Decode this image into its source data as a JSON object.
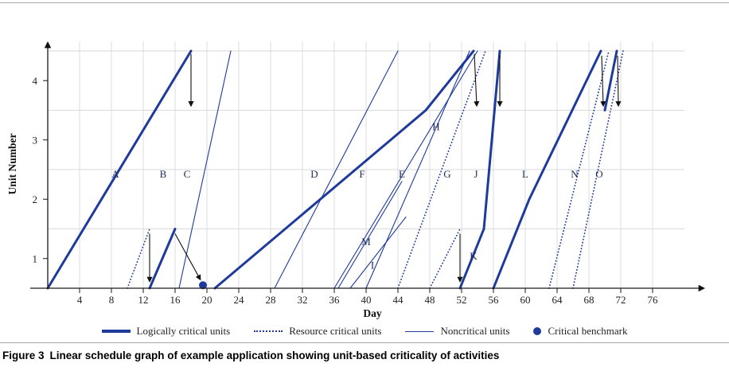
{
  "figure": {
    "caption_prefix": "Figure 3",
    "caption_text": "Linear schedule graph of example application showing unit-based criticality of activities"
  },
  "legend": [
    {
      "label": "Logically critical units",
      "style": "thick"
    },
    {
      "label": "Resource critical units",
      "style": "dotted"
    },
    {
      "label": "Noncritical units",
      "style": "thin"
    },
    {
      "label": "Critical benchmark",
      "style": "dot"
    }
  ],
  "colors": {
    "line": "#1e3a9a",
    "grid": "#d9d9d9",
    "axis": "#1a1a1a",
    "arrow": "#111111",
    "label": "#1d2c55",
    "tick": "#222222"
  },
  "chart_data": {
    "type": "line",
    "title": "",
    "xlabel": "Day",
    "ylabel": "Unit Number",
    "xlim": [
      0,
      80
    ],
    "ylim": [
      0.5,
      4.8
    ],
    "x_ticks": [
      4,
      8,
      12,
      16,
      20,
      24,
      28,
      32,
      36,
      40,
      44,
      48,
      52,
      56,
      60,
      64,
      68,
      72,
      76
    ],
    "y_ticks": [
      1,
      2,
      3,
      4
    ],
    "grid_units": [
      1.5,
      2.5,
      3.5,
      4.5
    ],
    "activities": [
      {
        "name": "A",
        "criticality": "logical",
        "points": [
          [
            0,
            0.5
          ],
          [
            18,
            4.5
          ]
        ],
        "label": [
          8.5,
          2.42
        ]
      },
      {
        "name": "B",
        "criticality": "logical",
        "points": [
          [
            12.8,
            0.5
          ],
          [
            16,
            1.5
          ]
        ],
        "label": [
          14.5,
          2.42
        ]
      },
      {
        "name": "C",
        "criticality": "noncritical",
        "points": [
          [
            16.5,
            0.5
          ],
          [
            23,
            4.5
          ]
        ],
        "label": [
          17.5,
          2.42
        ]
      },
      {
        "name": "",
        "criticality": "resource",
        "points": [
          [
            10,
            0.5
          ],
          [
            12.8,
            1.5
          ]
        ],
        "label": null
      },
      {
        "name": "D",
        "criticality": "noncritical",
        "points": [
          [
            28.5,
            0.5
          ],
          [
            44,
            4.5
          ]
        ],
        "label": [
          33.5,
          2.42
        ]
      },
      {
        "name": "F",
        "criticality": "logical",
        "points": [
          [
            21,
            0.5
          ],
          [
            47.5,
            3.5
          ],
          [
            53.5,
            4.5
          ]
        ],
        "label": [
          39.5,
          2.42
        ]
      },
      {
        "name": "E",
        "criticality": "noncritical",
        "points": [
          [
            36,
            0.5
          ],
          [
            54,
            4.5
          ]
        ],
        "label": [
          44.5,
          2.42
        ]
      },
      {
        "name": "H",
        "criticality": "noncritical",
        "points": [
          [
            40,
            0.5
          ],
          [
            53,
            4.5
          ]
        ],
        "label": [
          48.8,
          3.22
        ]
      },
      {
        "name": "M",
        "criticality": "noncritical",
        "points": [
          [
            36.5,
            0.5
          ],
          [
            44.5,
            2.3
          ]
        ],
        "label": [
          40,
          1.28
        ]
      },
      {
        "name": "I",
        "criticality": "noncritical",
        "points": [
          [
            38,
            0.5
          ],
          [
            45,
            1.7
          ]
        ],
        "label": [
          40.8,
          0.88
        ]
      },
      {
        "name": "G",
        "criticality": "resource",
        "points": [
          [
            44,
            0.5
          ],
          [
            55,
            4.5
          ]
        ],
        "label": [
          50.2,
          2.42
        ]
      },
      {
        "name": "",
        "criticality": "resource",
        "points": [
          [
            48,
            0.5
          ],
          [
            51.8,
            1.5
          ]
        ],
        "label": null
      },
      {
        "name": "K",
        "criticality": "logical",
        "points": [
          [
            51.8,
            0.5
          ],
          [
            54.8,
            1.5
          ]
        ],
        "label": [
          53.5,
          1.04
        ]
      },
      {
        "name": "J",
        "criticality": "logical",
        "points": [
          [
            54.8,
            1.5
          ],
          [
            56.8,
            4.5
          ]
        ],
        "label": [
          53.8,
          2.42
        ]
      },
      {
        "name": "L",
        "criticality": "logical",
        "points": [
          [
            56,
            0.5
          ],
          [
            60.5,
            2.0
          ],
          [
            69.5,
            4.5
          ]
        ],
        "label": [
          60,
          2.42
        ]
      },
      {
        "name": "N",
        "criticality": "resource",
        "points": [
          [
            63,
            0.5
          ],
          [
            70.5,
            4.5
          ]
        ],
        "label": [
          66.2,
          2.42
        ]
      },
      {
        "name": "O",
        "criticality": "resource",
        "points": [
          [
            66,
            0.5
          ],
          [
            72.3,
            4.5
          ]
        ],
        "label": [
          69.3,
          2.42
        ]
      },
      {
        "name": "",
        "criticality": "logical",
        "points": [
          [
            70,
            3.5
          ],
          [
            71.5,
            4.5
          ]
        ],
        "label": null
      }
    ],
    "arrows": [
      {
        "from": [
          18,
          4.45
        ],
        "to": [
          18,
          3.58
        ]
      },
      {
        "from": [
          12.8,
          1.42
        ],
        "to": [
          12.8,
          0.62
        ]
      },
      {
        "from": [
          16,
          1.42
        ],
        "to": [
          19.15,
          0.65
        ]
      },
      {
        "from": [
          53.6,
          4.45
        ],
        "to": [
          53.9,
          3.58
        ]
      },
      {
        "from": [
          56.8,
          4.42
        ],
        "to": [
          56.8,
          3.58
        ]
      },
      {
        "from": [
          51.8,
          1.42
        ],
        "to": [
          51.8,
          0.62
        ]
      },
      {
        "from": [
          69.6,
          4.42
        ],
        "to": [
          69.8,
          3.58
        ]
      },
      {
        "from": [
          71.6,
          4.42
        ],
        "to": [
          71.7,
          3.58
        ]
      }
    ],
    "benchmarks": [
      {
        "day": 19.5,
        "unit": 0.55
      }
    ]
  }
}
